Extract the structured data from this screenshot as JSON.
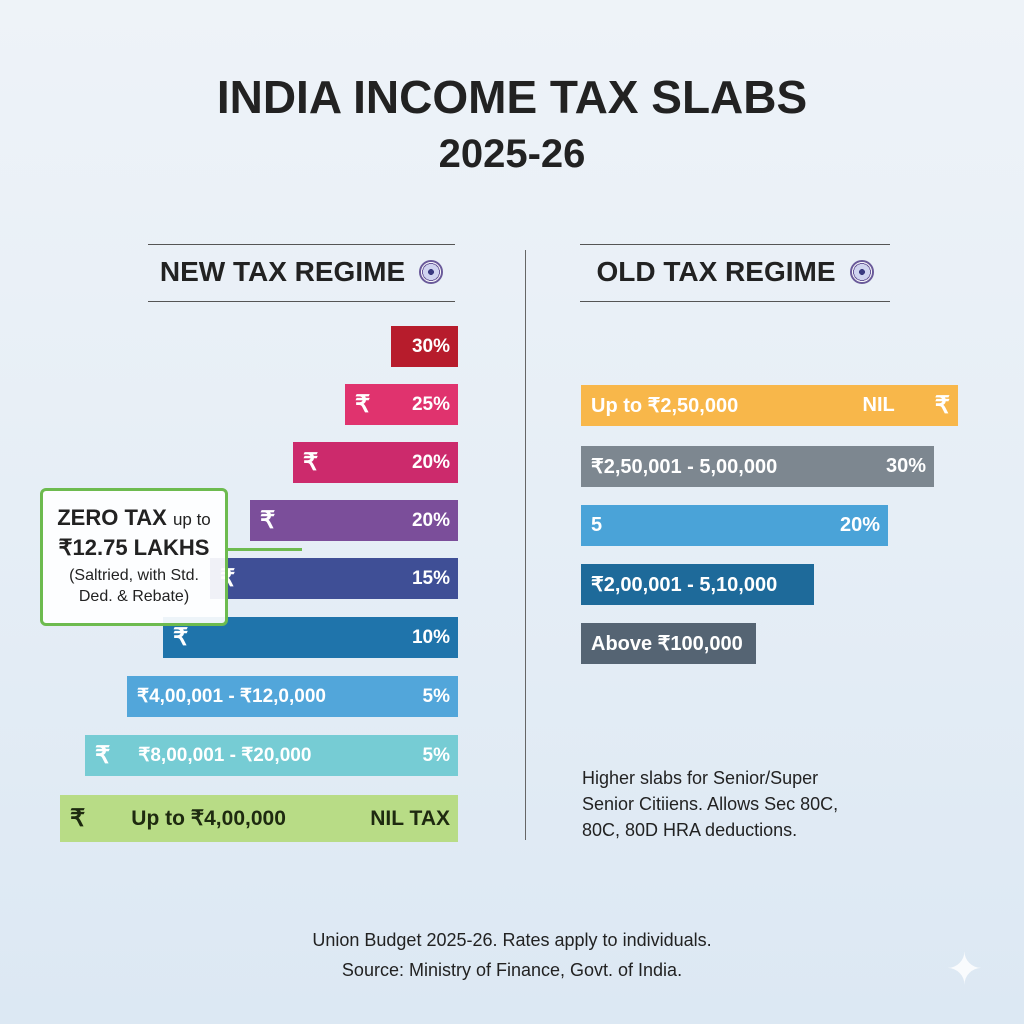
{
  "title": "INDIA INCOME TAX SLABS",
  "subtitle": "2025-26",
  "new_regime": {
    "heading": "NEW TAX REGIME",
    "bars": [
      {
        "symbol": "",
        "range": "",
        "rate": "30%",
        "color": "#b71c2c"
      },
      {
        "symbol": "₹",
        "range": "",
        "rate": "25%",
        "color": "#e0336e"
      },
      {
        "symbol": "₹",
        "range": "",
        "rate": "20%",
        "color": "#cc2a6c"
      },
      {
        "symbol": "₹",
        "range": "",
        "rate": "20%",
        "color": "#7b4e9a"
      },
      {
        "symbol": "₹",
        "range": "",
        "rate": "15%",
        "color": "#3f4f96"
      },
      {
        "symbol": "₹",
        "range": "",
        "rate": "10%",
        "color": "#1f74ab"
      },
      {
        "symbol": "",
        "range": "₹4,00,001 - ₹12,0,000",
        "rate": "5%",
        "color": "#52a6da"
      },
      {
        "symbol": "₹",
        "range": "₹8,00,001 - ₹20,000",
        "rate": "5%",
        "color": "#76ccd4"
      },
      {
        "symbol": "₹",
        "range": "Up to ₹4,00,000",
        "rate": "NIL TAX",
        "color": "#b8dc86"
      }
    ],
    "callout": {
      "headline_bold": "ZERO TAX",
      "headline_rest": "up to",
      "amount": "₹12.75 LAKHS",
      "note_line1": "(Saltried, with Std.",
      "note_line2": "Ded. & Rebate)"
    }
  },
  "old_regime": {
    "heading": "OLD TAX REGIME",
    "bars": [
      {
        "range": "Up to ₹2,50,000",
        "rate": "NIL",
        "symbol": "₹",
        "color": "#f8b74a"
      },
      {
        "range": "₹2,50,001 - 5,00,000",
        "rate": "30%",
        "symbol": "",
        "color": "#7d8790"
      },
      {
        "range": "5",
        "rate": "20%",
        "symbol": "",
        "color": "#4aa3d8"
      },
      {
        "range": "₹2,00,001 - 5,10,000",
        "rate": "",
        "symbol": "",
        "color": "#1e6a9a"
      },
      {
        "range": "Above ₹100,000",
        "rate": "",
        "symbol": "",
        "color": "#556473"
      }
    ],
    "note": [
      "Higher slabs for Senior/Super",
      "Senior Citiiens. Allows Sec 80C,",
      "80C, 80D HRA deductions."
    ]
  },
  "footer": {
    "line1": "Union Budget 2025-26. Rates apply to individuals.",
    "line2": "Source: Ministry of Finance, Govt. of India."
  }
}
